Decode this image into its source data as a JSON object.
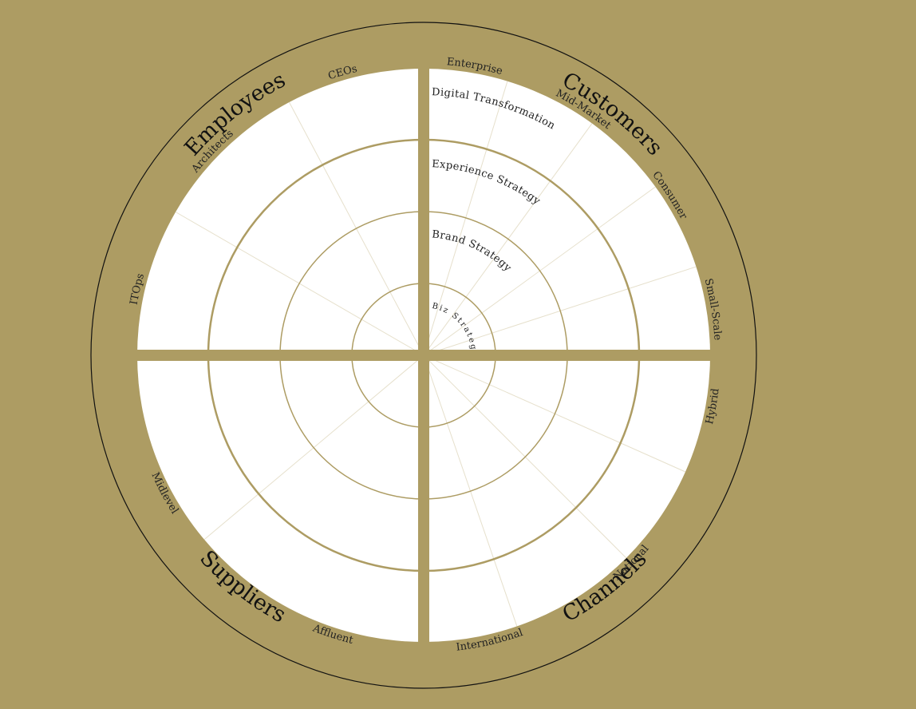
{
  "colors": {
    "background": "#ad9c63",
    "panel": "#ffffff",
    "ring_line": "#ad9c63",
    "divider": "#e6e0cc",
    "outline": "#111111",
    "text": "#222222"
  },
  "rings": [
    {
      "name": "Biz Strategy"
    },
    {
      "name": "Brand Strategy"
    },
    {
      "name": "Experience Strategy"
    },
    {
      "name": "Digital Transformation"
    }
  ],
  "quadrants": [
    {
      "id": "customers",
      "name": "Customers",
      "segments": [
        "Enterprise",
        "Mid-Market",
        "Consumer",
        "Small-Scale"
      ]
    },
    {
      "id": "channels",
      "name": "Channels",
      "segments": [
        "Hybrid",
        "National",
        "International"
      ]
    },
    {
      "id": "suppliers",
      "name": "Suppliers",
      "segments": [
        "Affluent",
        "Midlevel"
      ]
    },
    {
      "id": "employees",
      "name": "Employees",
      "segments": [
        "ITOps",
        "Architects",
        "CEOs"
      ]
    }
  ]
}
